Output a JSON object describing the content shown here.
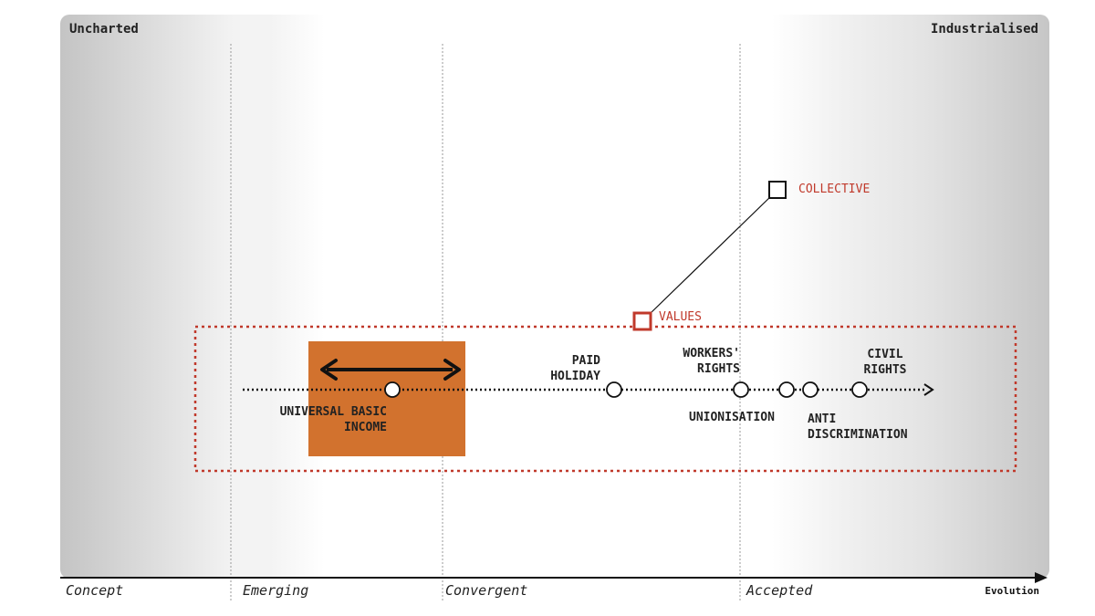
{
  "axis": {
    "top_left": "Uncharted",
    "top_right": "Industrialised",
    "stages": [
      "Concept",
      "Emerging",
      "Convergent",
      "Accepted"
    ],
    "evolution": "Evolution"
  },
  "components": {
    "collective": "COLLECTIVE",
    "values": "VALUES",
    "paid_holiday_1": "PAID",
    "paid_holiday_2": "HOLIDAY",
    "workers_rights_1": "WORKERS'",
    "workers_rights_2": "RIGHTS",
    "civil_rights_1": "CIVIL",
    "civil_rights_2": "RIGHTS",
    "ubi_1": "UNIVERSAL BASIC",
    "ubi_2": "INCOME",
    "unionisation": "UNIONISATION",
    "anti_discrimination_1": "ANTI",
    "anti_discrimination_2": "DISCRIMINATION"
  },
  "colors": {
    "accent": "#c0392b",
    "highlight": "#d2722e"
  }
}
